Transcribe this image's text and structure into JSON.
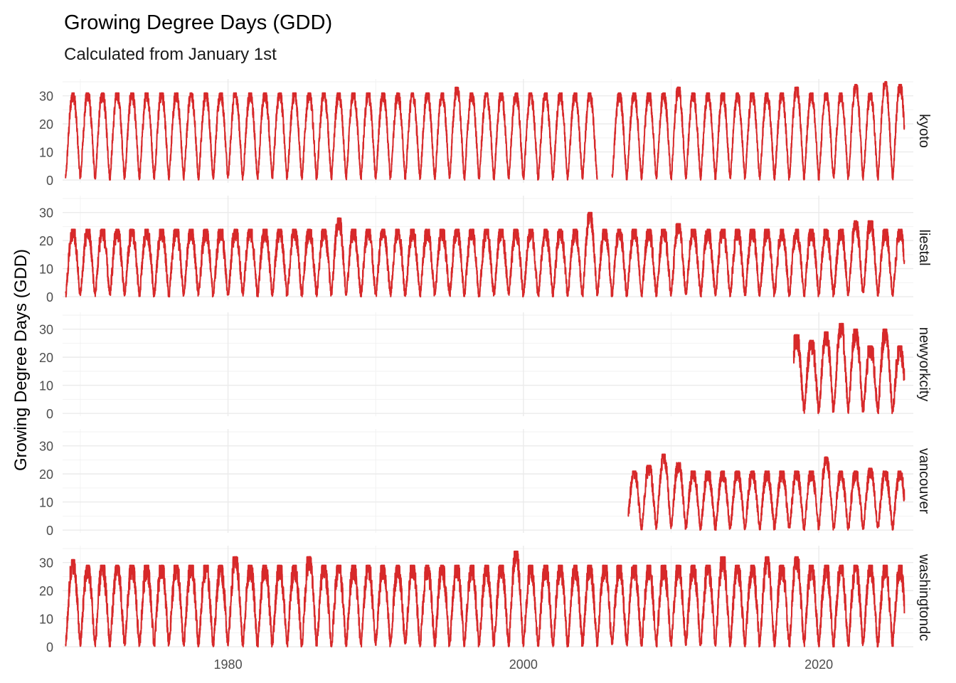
{
  "chart_data": {
    "type": "line",
    "title": "Growing Degree Days (GDD)",
    "subtitle": "Calculated from January 1st",
    "ylabel": "Growing Degree Days (GDD)",
    "xlabel": "",
    "x_ticks": [
      1980,
      2000,
      2020
    ],
    "y_ticks": [
      0,
      10,
      20,
      30
    ],
    "xlim": [
      1968.8,
      2026.4
    ],
    "ylim": [
      -1,
      36
    ],
    "grid": true,
    "line_color": "#D7292A",
    "panels": [
      {
        "name": "kyoto",
        "label": "kyoto",
        "start_year": 1969,
        "end_year": 2025.8,
        "gap": [
          2005,
          2006
        ],
        "base_peak": 31,
        "peaks": {
          "1995": 33,
          "2010": 33,
          "2018": 33,
          "2022": 34,
          "2024": 35,
          "2025": 34
        },
        "noise": 3.0
      },
      {
        "name": "liestal",
        "label": "liestal",
        "start_year": 1969,
        "end_year": 2025.8,
        "base_peak": 24,
        "peaks": {
          "1987": 28,
          "2004": 30,
          "2010": 26,
          "2022": 27,
          "2023": 27
        },
        "noise": 4.0
      },
      {
        "name": "newyorkcity",
        "label": "newyorkcity",
        "start_year": 2018.3,
        "end_year": 2025.8,
        "base_peak": 24,
        "peaks": {
          "2018": 28,
          "2019": 26,
          "2020": 29,
          "2021": 32,
          "2022": 30,
          "2024": 30
        },
        "noise": 5.0
      },
      {
        "name": "vancouver",
        "label": "vancouver",
        "start_year": 2007.1,
        "end_year": 2025.8,
        "base_peak": 21,
        "peaks": {
          "2008": 23,
          "2009": 27,
          "2010": 24,
          "2020": 26,
          "2023": 22
        },
        "noise": 3.5
      },
      {
        "name": "washingtondc",
        "label": "washingtondc",
        "start_year": 1969,
        "end_year": 2025.8,
        "base_peak": 29,
        "peaks": {
          "1969": 31,
          "1980": 32,
          "1985": 32,
          "1999": 34,
          "2013": 32,
          "2016": 32,
          "2018": 32
        },
        "noise": 5.0
      }
    ]
  }
}
